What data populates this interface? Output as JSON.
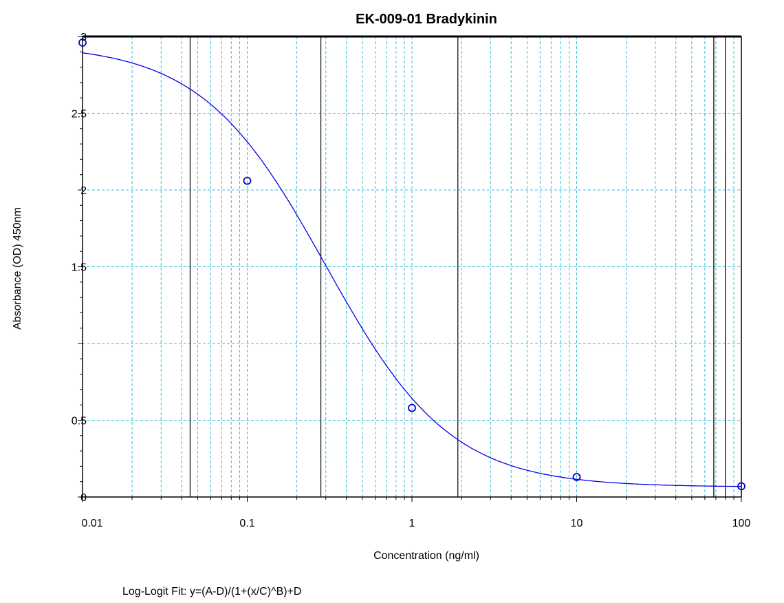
{
  "chart_data": {
    "type": "scatter",
    "title": "EK-009-01 Bradykinin",
    "xlabel": "Concentration (ng/ml)",
    "ylabel": "Absorbance (OD) 450nm",
    "footnote": "Log-Logit Fit: y=(A-D)/(1+(x/C)^B)+D",
    "x_scale": "log",
    "xlim": [
      0.01,
      100
    ],
    "ylim": [
      0,
      3
    ],
    "x_tick_labels": [
      "0.01",
      "0.1",
      "1",
      "10",
      "100"
    ],
    "x_ticks": [
      0.01,
      0.1,
      1,
      10,
      100
    ],
    "y_tick_labels": [
      "0",
      "0.5",
      "1.5",
      "2",
      "2.5",
      "3"
    ],
    "y_ticks": [
      0,
      0.5,
      1.5,
      2,
      2.5,
      3
    ],
    "grid": true,
    "series": [
      {
        "kind": "points",
        "color": "#0000cc",
        "x": [
          0.01,
          0.1,
          1,
          10,
          100
        ],
        "y": [
          2.96,
          2.06,
          0.58,
          0.13,
          0.07
        ]
      },
      {
        "kind": "fit-curve",
        "color": "#0000ee",
        "fit": {
          "A": 2.95,
          "B": 1.15,
          "C": 0.3,
          "D": 0.065
        }
      }
    ],
    "extra_vlines": [
      0.045,
      0.28,
      1.9,
      68,
      80
    ]
  }
}
